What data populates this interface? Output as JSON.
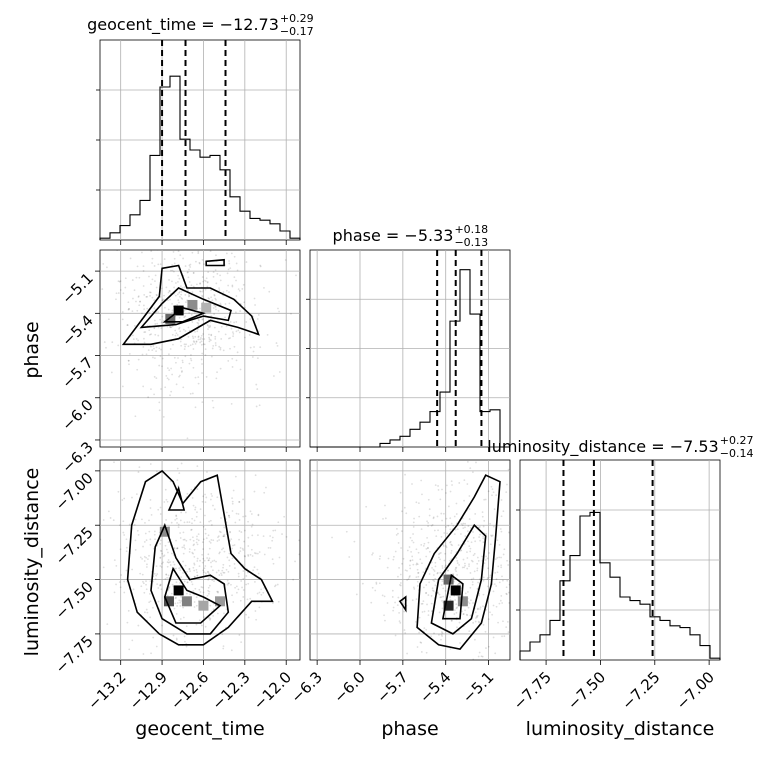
{
  "chart_data": {
    "type": "corner",
    "parameters": [
      {
        "name": "geocent_time",
        "label": "geocent_time",
        "range": [
          -13.35,
          -11.9
        ],
        "ticks": [
          -13.2,
          -12.9,
          -12.6,
          -12.3,
          -12.0
        ],
        "tick_labels": [
          "−13.2",
          "−12.9",
          "−12.6",
          "−12.3",
          "−12.0"
        ],
        "title_main": "geocent_time = −12.73",
        "title_sup": "+0.29",
        "title_sub": "−0.17",
        "quantiles": [
          -12.9,
          -12.73,
          -12.44
        ],
        "hist": [
          0.01,
          0.04,
          0.08,
          0.14,
          0.22,
          0.47,
          0.85,
          0.91,
          0.56,
          0.5,
          0.46,
          0.47,
          0.39,
          0.24,
          0.16,
          0.12,
          0.11,
          0.09,
          0.05,
          0.01
        ]
      },
      {
        "name": "phase",
        "label": "phase",
        "range": [
          -6.35,
          -4.95
        ],
        "ticks": [
          -6.3,
          -6.0,
          -5.7,
          -5.4,
          -5.1
        ],
        "tick_labels": [
          "−6.3",
          "−6.0",
          "−5.7",
          "−5.4",
          "−5.1"
        ],
        "title_main": "phase = −5.33",
        "title_sup": "+0.18",
        "title_sub": "−0.13",
        "quantiles": [
          -5.46,
          -5.33,
          -5.15
        ],
        "hist": [
          0.0,
          0.0,
          0.0,
          0.0,
          0.0,
          0.0,
          0.0,
          0.02,
          0.04,
          0.06,
          0.1,
          0.14,
          0.2,
          0.31,
          0.71,
          1.0,
          0.75,
          0.2,
          0.21,
          0.0
        ]
      },
      {
        "name": "luminosity_distance",
        "label": "luminosity_distance",
        "range": [
          -7.87,
          -6.95
        ],
        "ticks": [
          -7.75,
          -7.5,
          -7.25,
          -7.0
        ],
        "tick_labels": [
          "−7.75",
          "−7.50",
          "−7.25",
          "−7.00"
        ],
        "title_main": "luminosity_distance = −7.53",
        "title_sup": "+0.27",
        "title_sub": "−0.14",
        "quantiles": [
          -7.67,
          -7.53,
          -7.26
        ],
        "hist": [
          0.05,
          0.1,
          0.14,
          0.22,
          0.44,
          0.58,
          0.8,
          0.82,
          0.54,
          0.46,
          0.35,
          0.33,
          0.31,
          0.24,
          0.22,
          0.19,
          0.18,
          0.14,
          0.08,
          0.01
        ]
      }
    ],
    "pairs": [
      {
        "x": "geocent_time",
        "y": "phase",
        "y_range": [
          -6.35,
          -4.95
        ],
        "y_ticks": [
          -6.3,
          -6.0,
          -5.7,
          -5.4,
          -5.1
        ],
        "y_tick_labels": [
          "−6.3",
          "−6.0",
          "−5.7",
          "−5.4",
          "−5.1"
        ],
        "contours": [
          [
            [
              -13.18,
              -5.62
            ],
            [
              -13.05,
              -5.45
            ],
            [
              -12.92,
              -5.28
            ],
            [
              -12.9,
              -5.08
            ],
            [
              -12.78,
              -5.06
            ],
            [
              -12.72,
              -5.22
            ],
            [
              -12.55,
              -5.22
            ],
            [
              -12.38,
              -5.3
            ],
            [
              -12.25,
              -5.42
            ],
            [
              -12.2,
              -5.55
            ],
            [
              -12.35,
              -5.5
            ],
            [
              -12.55,
              -5.45
            ],
            [
              -12.78,
              -5.58
            ],
            [
              -12.98,
              -5.62
            ],
            [
              -13.18,
              -5.62
            ]
          ],
          [
            [
              -13.05,
              -5.5
            ],
            [
              -12.9,
              -5.33
            ],
            [
              -12.78,
              -5.22
            ],
            [
              -12.6,
              -5.3
            ],
            [
              -12.4,
              -5.38
            ],
            [
              -12.42,
              -5.45
            ],
            [
              -12.6,
              -5.42
            ],
            [
              -12.8,
              -5.48
            ],
            [
              -13.05,
              -5.5
            ]
          ],
          [
            [
              -12.88,
              -5.46
            ],
            [
              -12.75,
              -5.36
            ],
            [
              -12.6,
              -5.4
            ],
            [
              -12.75,
              -5.46
            ],
            [
              -12.88,
              -5.46
            ]
          ],
          [
            [
              -12.58,
              -5.03
            ],
            [
              -12.45,
              -5.02
            ],
            [
              -12.45,
              -5.06
            ],
            [
              -12.58,
              -5.06
            ],
            [
              -12.58,
              -5.03
            ]
          ]
        ],
        "density_cells": [
          {
            "x": -12.78,
            "y": -5.38,
            "level": 1.0
          },
          {
            "x": -12.84,
            "y": -5.44,
            "level": 0.6
          },
          {
            "x": -12.68,
            "y": -5.34,
            "level": 0.45
          },
          {
            "x": -12.58,
            "y": -5.36,
            "level": 0.3
          }
        ]
      },
      {
        "x": "geocent_time",
        "y": "luminosity_distance",
        "y_range": [
          -7.87,
          -6.95
        ],
        "y_ticks": [
          -7.75,
          -7.5,
          -7.25,
          -7.0
        ],
        "y_tick_labels": [
          "−7.75",
          "−7.50",
          "−7.25",
          "−7.00"
        ],
        "contours": [
          [
            [
              -13.08,
              -7.65
            ],
            [
              -13.15,
              -7.5
            ],
            [
              -13.12,
              -7.25
            ],
            [
              -13.02,
              -7.05
            ],
            [
              -12.9,
              -7.0
            ],
            [
              -12.82,
              -7.05
            ],
            [
              -12.75,
              -7.15
            ],
            [
              -12.62,
              -7.05
            ],
            [
              -12.5,
              -7.02
            ],
            [
              -12.45,
              -7.2
            ],
            [
              -12.4,
              -7.38
            ],
            [
              -12.3,
              -7.45
            ],
            [
              -12.18,
              -7.5
            ],
            [
              -12.1,
              -7.6
            ],
            [
              -12.25,
              -7.6
            ],
            [
              -12.42,
              -7.72
            ],
            [
              -12.6,
              -7.8
            ],
            [
              -12.78,
              -7.8
            ],
            [
              -12.92,
              -7.75
            ],
            [
              -13.08,
              -7.65
            ]
          ],
          [
            [
              -12.98,
              -7.55
            ],
            [
              -12.95,
              -7.35
            ],
            [
              -12.88,
              -7.25
            ],
            [
              -12.8,
              -7.4
            ],
            [
              -12.7,
              -7.5
            ],
            [
              -12.55,
              -7.48
            ],
            [
              -12.45,
              -7.52
            ],
            [
              -12.42,
              -7.65
            ],
            [
              -12.55,
              -7.75
            ],
            [
              -12.72,
              -7.75
            ],
            [
              -12.9,
              -7.68
            ],
            [
              -12.98,
              -7.55
            ]
          ],
          [
            [
              -12.88,
              -7.58
            ],
            [
              -12.82,
              -7.45
            ],
            [
              -12.72,
              -7.55
            ],
            [
              -12.6,
              -7.58
            ],
            [
              -12.48,
              -7.62
            ],
            [
              -12.62,
              -7.7
            ],
            [
              -12.8,
              -7.7
            ],
            [
              -12.88,
              -7.58
            ]
          ],
          [
            [
              -12.85,
              -7.18
            ],
            [
              -12.78,
              -7.08
            ],
            [
              -12.74,
              -7.18
            ],
            [
              -12.85,
              -7.18
            ]
          ]
        ],
        "density_cells": [
          {
            "x": -12.78,
            "y": -7.55,
            "level": 1.0
          },
          {
            "x": -12.85,
            "y": -7.6,
            "level": 0.7
          },
          {
            "x": -12.72,
            "y": -7.6,
            "level": 0.5
          },
          {
            "x": -12.6,
            "y": -7.62,
            "level": 0.35
          },
          {
            "x": -12.48,
            "y": -7.6,
            "level": 0.4
          },
          {
            "x": -12.88,
            "y": -7.28,
            "level": 0.45
          }
        ]
      },
      {
        "x": "phase",
        "y": "luminosity_distance",
        "y_range": [
          -7.87,
          -6.95
        ],
        "y_ticks": [
          -7.75,
          -7.5,
          -7.25,
          -7.0
        ],
        "y_tick_labels": [
          "−7.75",
          "−7.50",
          "−7.25",
          "−7.00"
        ],
        "contours": [
          [
            [
              -5.6,
              -7.72
            ],
            [
              -5.58,
              -7.52
            ],
            [
              -5.48,
              -7.38
            ],
            [
              -5.32,
              -7.25
            ],
            [
              -5.2,
              -7.12
            ],
            [
              -5.12,
              -7.02
            ],
            [
              -5.02,
              -7.05
            ],
            [
              -5.05,
              -7.3
            ],
            [
              -5.08,
              -7.52
            ],
            [
              -5.15,
              -7.7
            ],
            [
              -5.3,
              -7.82
            ],
            [
              -5.45,
              -7.8
            ],
            [
              -5.6,
              -7.72
            ]
          ],
          [
            [
              -5.5,
              -7.7
            ],
            [
              -5.45,
              -7.5
            ],
            [
              -5.32,
              -7.38
            ],
            [
              -5.2,
              -7.25
            ],
            [
              -5.12,
              -7.3
            ],
            [
              -5.15,
              -7.5
            ],
            [
              -5.22,
              -7.68
            ],
            [
              -5.35,
              -7.75
            ],
            [
              -5.5,
              -7.7
            ]
          ],
          [
            [
              -5.42,
              -7.68
            ],
            [
              -5.36,
              -7.48
            ],
            [
              -5.28,
              -7.52
            ],
            [
              -5.3,
              -7.68
            ],
            [
              -5.42,
              -7.68
            ]
          ],
          [
            [
              -5.72,
              -7.6
            ],
            [
              -5.68,
              -7.58
            ],
            [
              -5.68,
              -7.64
            ],
            [
              -5.72,
              -7.6
            ]
          ]
        ],
        "density_cells": [
          {
            "x": -5.33,
            "y": -7.55,
            "level": 1.0
          },
          {
            "x": -5.38,
            "y": -7.62,
            "level": 0.85
          },
          {
            "x": -5.38,
            "y": -7.5,
            "level": 0.6
          },
          {
            "x": -5.28,
            "y": -7.6,
            "level": 0.45
          }
        ]
      }
    ]
  }
}
